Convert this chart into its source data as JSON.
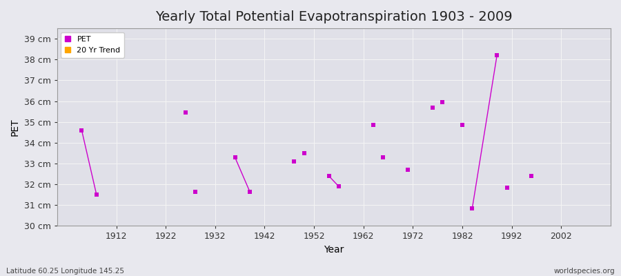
{
  "title": "Yearly Total Potential Evapotranspiration 1903 - 2009",
  "xlabel": "Year",
  "ylabel": "PET",
  "footnote_left": "Latitude 60.25 Longitude 145.25",
  "footnote_right": "worldspecies.org",
  "xlim": [
    1900,
    2012
  ],
  "ylim": [
    30.0,
    39.5
  ],
  "yticks": [
    30,
    31,
    32,
    33,
    34,
    35,
    36,
    37,
    38,
    39
  ],
  "ytick_labels": [
    "30 cm",
    "31 cm",
    "32 cm",
    "33 cm",
    "34 cm",
    "35 cm",
    "36 cm",
    "37 cm",
    "38 cm",
    "39 cm"
  ],
  "xticks": [
    1912,
    1922,
    1932,
    1942,
    1952,
    1962,
    1972,
    1982,
    1992,
    2002
  ],
  "bg_color": "#e8e8ee",
  "plot_bg_color": "#e0e0e8",
  "grid_color": "#f5f5f5",
  "pet_color": "#cc00cc",
  "trend_color": "#ffa500",
  "pet_marker": "s",
  "pet_markersize": 5,
  "pet_data": [
    [
      1905,
      34.6
    ],
    [
      1908,
      31.5
    ],
    [
      1926,
      35.45
    ],
    [
      1928,
      31.65
    ],
    [
      1936,
      33.3
    ],
    [
      1939,
      31.65
    ],
    [
      1948,
      33.1
    ],
    [
      1950,
      33.5
    ],
    [
      1955,
      32.4
    ],
    [
      1957,
      31.9
    ],
    [
      1964,
      34.85
    ],
    [
      1966,
      33.3
    ],
    [
      1971,
      32.7
    ],
    [
      1976,
      35.7
    ],
    [
      1978,
      35.95
    ],
    [
      1982,
      34.85
    ],
    [
      1984,
      30.85
    ],
    [
      1989,
      38.2
    ],
    [
      1991,
      31.85
    ],
    [
      1996,
      32.4
    ]
  ],
  "trend_segments": [
    [
      [
        1905,
        34.6
      ],
      [
        1908,
        31.5
      ]
    ],
    [
      [
        1936,
        33.3
      ],
      [
        1939,
        31.65
      ]
    ],
    [
      [
        1955,
        32.4
      ],
      [
        1957,
        31.9
      ]
    ],
    [
      [
        1984,
        30.85
      ],
      [
        1989,
        38.2
      ]
    ]
  ],
  "title_fontsize": 14,
  "axis_label_fontsize": 10,
  "tick_fontsize": 9,
  "legend_fontsize": 8,
  "footnote_fontsize": 7.5
}
